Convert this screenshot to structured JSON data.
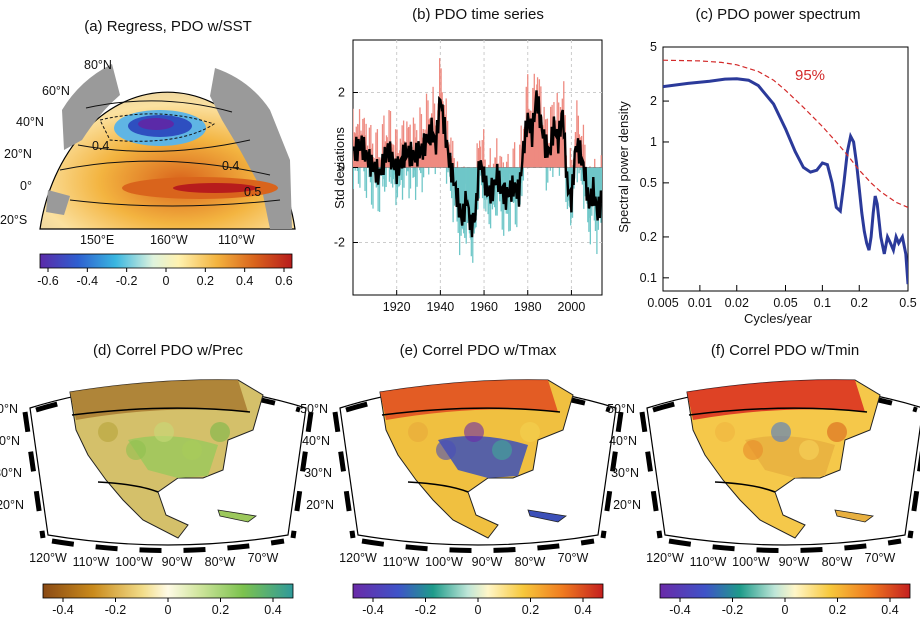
{
  "panels": {
    "a": {
      "title": "(a) Regress, PDO w/SST",
      "lat_labels": [
        "80°N",
        "60°N",
        "40°N",
        "20°N",
        "0°",
        "20°S"
      ],
      "lon_labels": [
        "150°E",
        "160°W",
        "110°W"
      ],
      "contour_labels": [
        "0.4",
        "0.4",
        "0.5"
      ],
      "colorbar_ticks": [
        "-0.6",
        "-0.4",
        "-0.2",
        "0",
        "0.2",
        "0.4",
        "0.6"
      ]
    },
    "d": {
      "title": "(d) Correl PDO w/Prec",
      "colorbar_ticks": [
        "-0.4",
        "-0.2",
        "0",
        "0.2",
        "0.4"
      ]
    },
    "e": {
      "title": "(e) Correl PDO w/Tmax",
      "colorbar_ticks": [
        "-0.4",
        "-0.2",
        "0",
        "0.2",
        "0.4"
      ]
    },
    "f": {
      "title": "(f) Correl PDO w/Tmin",
      "colorbar_ticks": [
        "-0.4",
        "-0.2",
        "0",
        "0.2",
        "0.4"
      ]
    },
    "map_labels": {
      "lat": [
        "50°N",
        "40°N",
        "30°N",
        "20°N"
      ],
      "lon": [
        "120°W",
        "110°W",
        "100°W",
        "90°W",
        "80°W",
        "70°W"
      ]
    }
  },
  "colors": {
    "positive_fill": "#ee8a80",
    "negative_fill": "#6fc7c8",
    "spectrum_line": "#2b3a9a",
    "significance_line": "#d32a2a",
    "ocean_land": "#9a9a9a"
  },
  "chart_data": [
    {
      "panel": "b",
      "type": "bar",
      "title": "(b) PDO time series",
      "ylabel": "Std deviations",
      "xlabel": "",
      "xlim": [
        1900,
        2014
      ],
      "ylim": [
        -3.4,
        3.4
      ],
      "xticks": [
        "1920",
        "1940",
        "1960",
        "1980",
        "2000"
      ],
      "yticks": [
        "2",
        "0",
        "-2"
      ],
      "grid": true,
      "annual_smoothed": {
        "x": [
          1900,
          1904,
          1908,
          1912,
          1916,
          1920,
          1924,
          1928,
          1932,
          1936,
          1938,
          1940,
          1942,
          1944,
          1946,
          1948,
          1950,
          1952,
          1954,
          1956,
          1958,
          1960,
          1962,
          1964,
          1966,
          1968,
          1970,
          1972,
          1974,
          1976,
          1978,
          1980,
          1982,
          1984,
          1986,
          1988,
          1990,
          1992,
          1994,
          1996,
          1998,
          2000,
          2002,
          2004,
          2006,
          2008,
          2010,
          2012,
          2014
        ],
        "values": [
          0.4,
          0.6,
          0.1,
          -0.2,
          0.5,
          -0.1,
          0.4,
          0.3,
          0.5,
          1.0,
          0.6,
          1.9,
          1.0,
          0.2,
          -0.3,
          -0.9,
          -1.4,
          -0.8,
          -1.6,
          -1.3,
          0.2,
          -0.3,
          -0.7,
          -0.6,
          -0.2,
          -0.6,
          -0.8,
          -0.6,
          -0.5,
          -0.7,
          0.5,
          1.3,
          0.9,
          1.9,
          1.2,
          0.6,
          0.4,
          1.1,
          0.7,
          1.5,
          -0.4,
          -0.9,
          0.6,
          0.4,
          -0.1,
          -1.0,
          -0.6,
          -1.2,
          -0.8
        ]
      }
    },
    {
      "panel": "c",
      "type": "line",
      "title": "(c) PDO power spectrum",
      "xlabel": "Cycles/year",
      "ylabel": "Spectral power density",
      "xscale": "log",
      "yscale": "log",
      "xlim": [
        0.005,
        0.5
      ],
      "ylim": [
        0.08,
        5
      ],
      "xticks": [
        "0.005",
        "0.01",
        "0.02",
        "0.05",
        "0.1",
        "0.2",
        "0.5"
      ],
      "yticks": [
        "5",
        "2",
        "1",
        "0.5",
        "0.2",
        "0.1"
      ],
      "annotation": "95%",
      "series": [
        {
          "style": "solid",
          "x": [
            0.005,
            0.008,
            0.012,
            0.016,
            0.02,
            0.025,
            0.03,
            0.04,
            0.05,
            0.06,
            0.07,
            0.08,
            0.09,
            0.1,
            0.11,
            0.12,
            0.13,
            0.14,
            0.15,
            0.16,
            0.17,
            0.18,
            0.19,
            0.2,
            0.21,
            0.22,
            0.23,
            0.24,
            0.25,
            0.26,
            0.27,
            0.28,
            0.3,
            0.32,
            0.34,
            0.36,
            0.38,
            0.4,
            0.42,
            0.45,
            0.48,
            0.5
          ],
          "y": [
            2.55,
            2.7,
            2.8,
            2.9,
            2.92,
            2.85,
            2.6,
            1.9,
            1.25,
            0.85,
            0.65,
            0.6,
            0.62,
            0.7,
            0.68,
            0.5,
            0.33,
            0.31,
            0.5,
            0.85,
            1.1,
            1.0,
            0.7,
            0.45,
            0.3,
            0.22,
            0.18,
            0.16,
            0.2,
            0.3,
            0.4,
            0.35,
            0.2,
            0.15,
            0.2,
            0.18,
            0.16,
            0.2,
            0.18,
            0.2,
            0.15,
            0.09
          ]
        },
        {
          "style": "dashed",
          "x": [
            0.005,
            0.01,
            0.015,
            0.02,
            0.03,
            0.04,
            0.05,
            0.07,
            0.1,
            0.13,
            0.16,
            0.2,
            0.25,
            0.3,
            0.4,
            0.5
          ],
          "y": [
            4.0,
            3.95,
            3.85,
            3.7,
            3.3,
            2.85,
            2.4,
            1.8,
            1.3,
            1.0,
            0.8,
            0.62,
            0.5,
            0.43,
            0.36,
            0.33
          ]
        }
      ]
    }
  ]
}
